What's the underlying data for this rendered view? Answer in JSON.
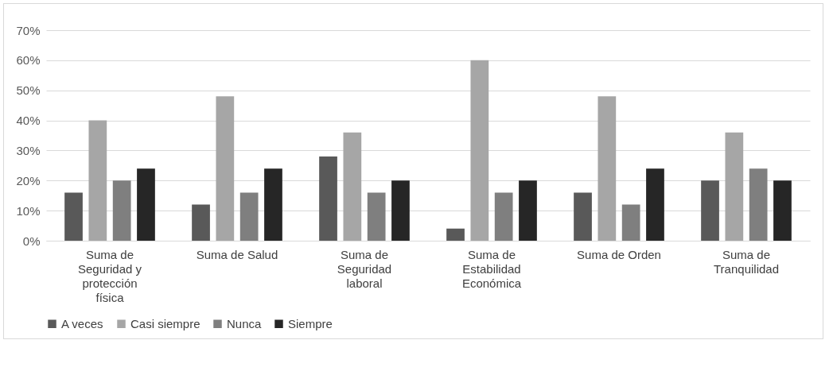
{
  "chart_data": {
    "type": "bar",
    "categories": [
      "Suma de Seguridad y protección física",
      "Suma de Salud",
      "Suma de Seguridad laboral",
      "Suma de Estabilidad Económica",
      "Suma de Orden",
      "Suma de Tranquilidad"
    ],
    "series": [
      {
        "name": "A veces",
        "color": "#595959",
        "values": [
          16,
          12,
          28,
          4,
          16,
          20
        ]
      },
      {
        "name": "Casi siempre",
        "color": "#a6a6a6",
        "values": [
          40,
          48,
          36,
          60,
          48,
          36
        ]
      },
      {
        "name": "Nunca",
        "color": "#7f7f7f",
        "values": [
          20,
          16,
          16,
          16,
          12,
          24
        ]
      },
      {
        "name": "Siempre",
        "color": "#262626",
        "values": [
          24,
          24,
          20,
          20,
          24,
          20
        ]
      }
    ],
    "ylim": [
      0,
      70
    ],
    "yticks": [
      {
        "value": 0,
        "label": "0%"
      },
      {
        "value": 10,
        "label": "10%"
      },
      {
        "value": 20,
        "label": "20%"
      },
      {
        "value": 30,
        "label": "30%"
      },
      {
        "value": 40,
        "label": "40%"
      },
      {
        "value": 50,
        "label": "50%"
      },
      {
        "value": 60,
        "label": "60%"
      },
      {
        "value": 70,
        "label": "70%"
      }
    ],
    "grid": "y",
    "legend": "bottom"
  }
}
